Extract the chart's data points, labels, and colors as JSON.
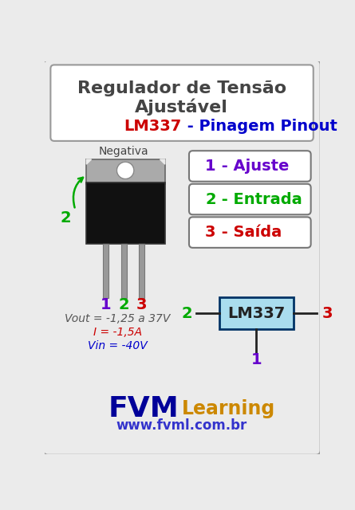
{
  "title_line1": "Regulador de Tensão",
  "title_line2": "Ajustável",
  "subtitle_lm337": "LM337",
  "subtitle_rest": " - Pinagem Pinout",
  "bg_color": "#ebebeb",
  "border_color": "#999999",
  "title_color": "#444444",
  "lm337_color": "#cc0000",
  "pinagem_color": "#0000cc",
  "negativa_label": "Negativa",
  "pin1_color": "#6600cc",
  "pin2_color": "#00aa00",
  "pin3_color": "#cc0000",
  "box_border_color": "#777777",
  "box_bg_color": "#ffffff",
  "ic_box_color": "#aaddee",
  "ic_box_border": "#003366",
  "ic_text": "LM337",
  "ic_text_color": "#222222",
  "vout_text": "Vout = -1,25 a 37V",
  "i_text": "I = -1,5A",
  "vin_text": "Vin = -40V",
  "vout_color": "#555555",
  "i_color": "#cc0000",
  "vin_color": "#0000cc",
  "fvm_text": "FVM",
  "learning_text": "Learning",
  "fvm_color": "#000099",
  "learning_color": "#cc8800",
  "website_text": "www.fvml.com.br",
  "website_color": "#3333cc",
  "tab_color": "#aaaaaa",
  "body_color": "#111111",
  "lead_color": "#999999",
  "arrow_color": "#00aa00"
}
